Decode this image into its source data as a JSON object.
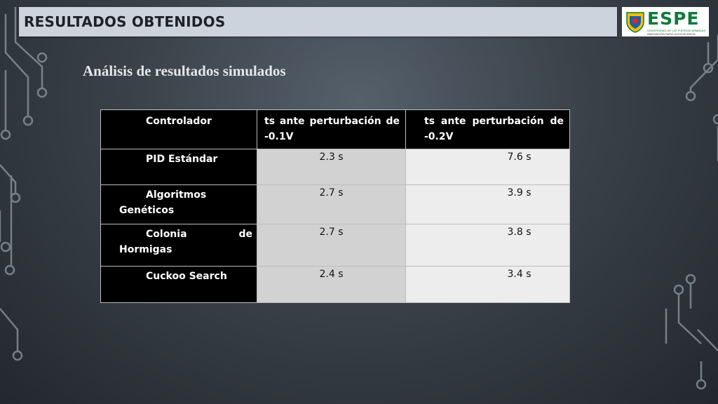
{
  "header": {
    "title": "RESULTADOS OBTENIDOS",
    "logo": {
      "wordmark": "ESPE",
      "subtitle": "UNIVERSIDAD DE LAS FUERZAS ARMADAS",
      "tagline": "INNOVACIÓN PARA LA EXCELENCIA"
    }
  },
  "subtitle": "Análisis de resultados simulados",
  "table": {
    "headers": [
      "Controlador",
      "ts ante perturbación de -0.1V",
      "ts ante perturbación de -0.2V"
    ],
    "rows": [
      {
        "controller": "PID Estándar",
        "ts_01": "2.3 s",
        "ts_02": "7.6 s"
      },
      {
        "controller": "Algoritmos Genéticos",
        "ts_01": "2.7 s",
        "ts_02": "3.9 s"
      },
      {
        "controller": "Colonia de Hormigas",
        "ts_01": "2.7 s",
        "ts_02": "3.8 s"
      },
      {
        "controller": "Cuckoo Search",
        "ts_01": "2.4 s",
        "ts_02": "3.4 s"
      }
    ]
  },
  "colors": {
    "background": "#3a4149",
    "header_bar": "#ccd3dc",
    "table_header": "#000000",
    "cell_dark": "#d2d2d2",
    "cell_light": "#ededed",
    "logo_green": "#0f7a3a"
  }
}
